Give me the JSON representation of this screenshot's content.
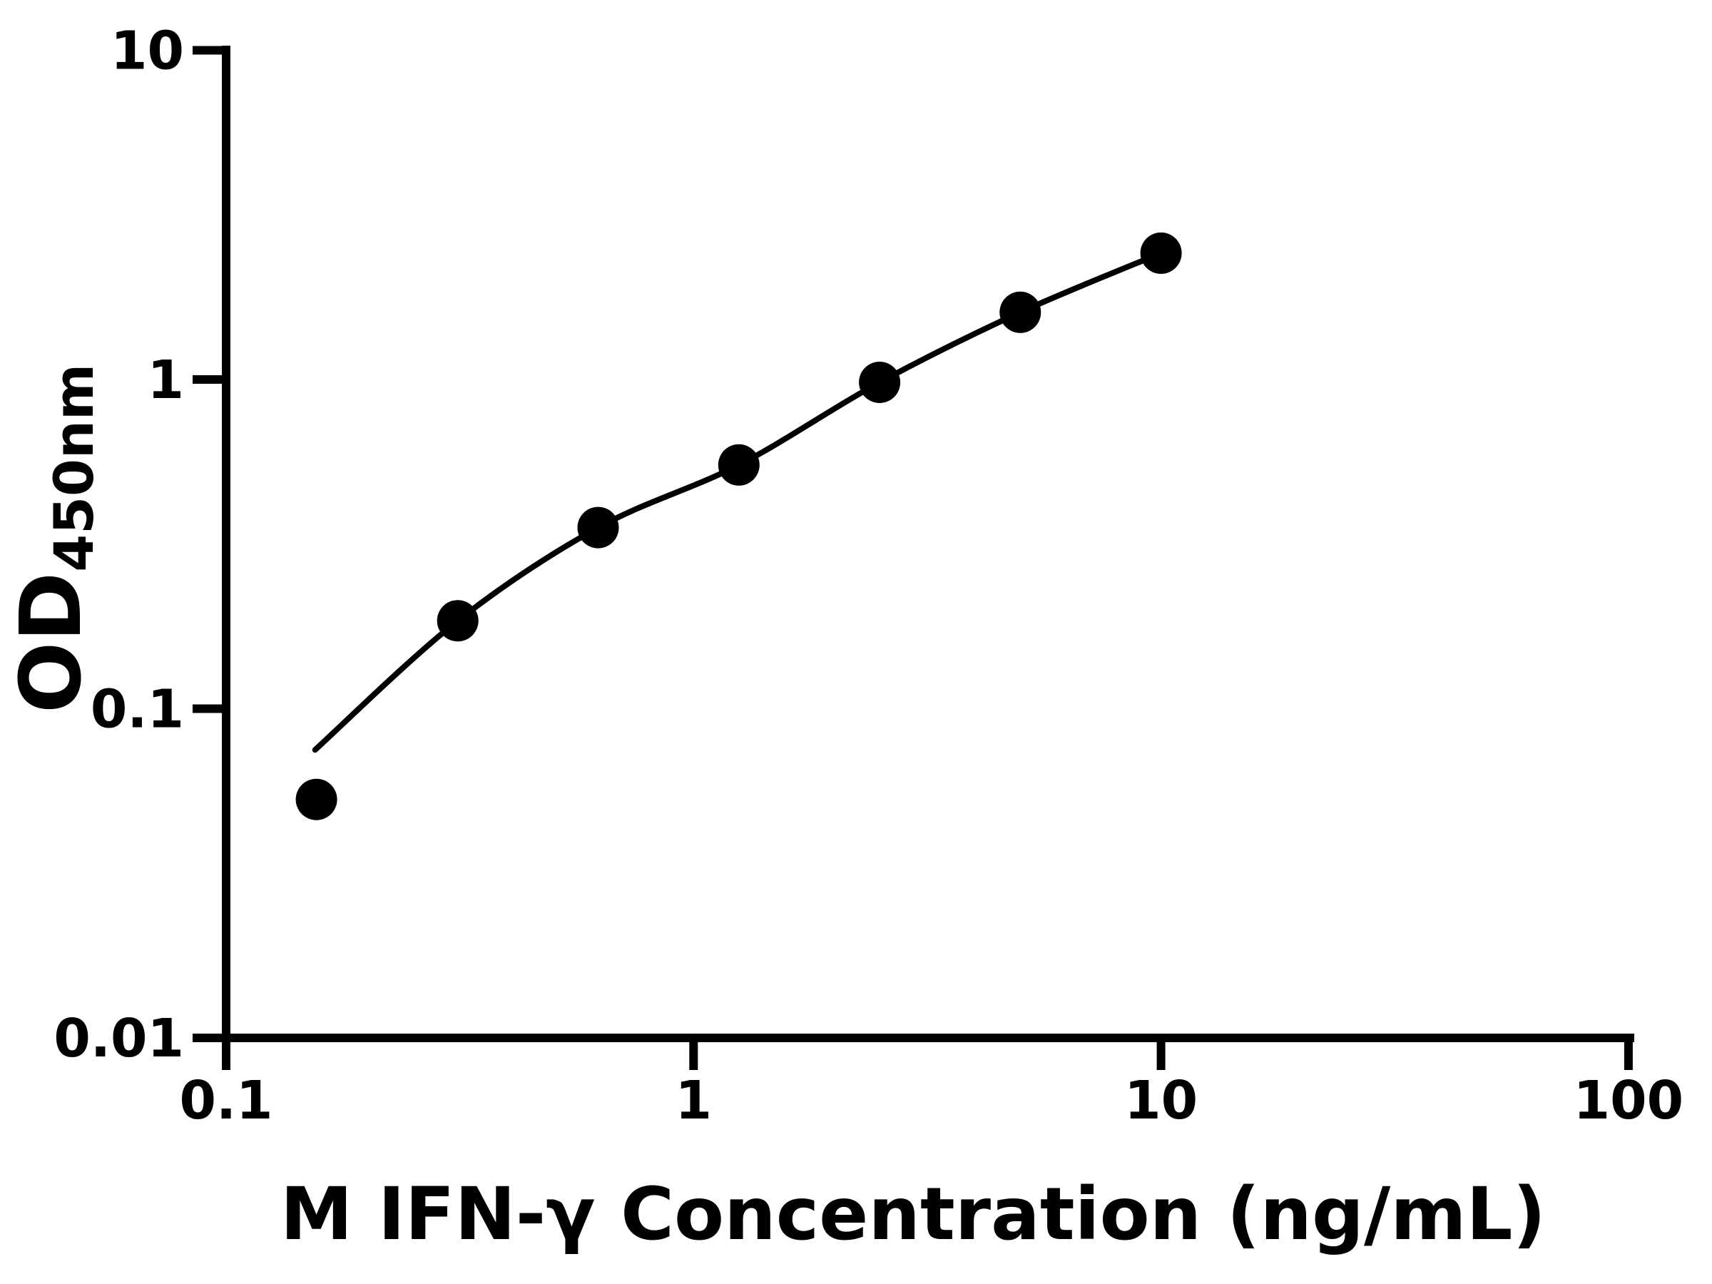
{
  "chart_data": {
    "type": "scatter",
    "title": "",
    "xlabel": "M IFN-γ Concentration (ng/mL)",
    "ylabel_main": "OD",
    "ylabel_sub": "450nm",
    "x_scale": "log",
    "y_scale": "log",
    "xlim": [
      0.1,
      100
    ],
    "ylim": [
      0.01,
      10
    ],
    "x_ticks": [
      0.1,
      1,
      10,
      100
    ],
    "x_tick_labels": [
      "0.1",
      "1",
      "10",
      "100"
    ],
    "y_ticks": [
      10,
      1,
      0.1,
      0.01
    ],
    "y_tick_labels": [
      "10",
      "1",
      "0.1",
      "0.01"
    ],
    "grid": "off",
    "legend": "none",
    "marker_color": "#000000",
    "line_color": "#000000",
    "background_color": "#ffffff",
    "series": [
      {
        "name": "standard-points",
        "type": "scatter",
        "x": [
          0.156,
          0.313,
          0.625,
          1.25,
          2.5,
          5,
          10
        ],
        "y": [
          0.053,
          0.185,
          0.355,
          0.55,
          0.98,
          1.6,
          2.42
        ]
      },
      {
        "name": "fit-curve",
        "type": "line",
        "x": [
          0.155,
          0.313,
          0.625,
          1.25,
          2.5,
          5,
          10
        ],
        "y": [
          0.075,
          0.185,
          0.355,
          0.55,
          0.98,
          1.6,
          2.42
        ]
      }
    ]
  }
}
